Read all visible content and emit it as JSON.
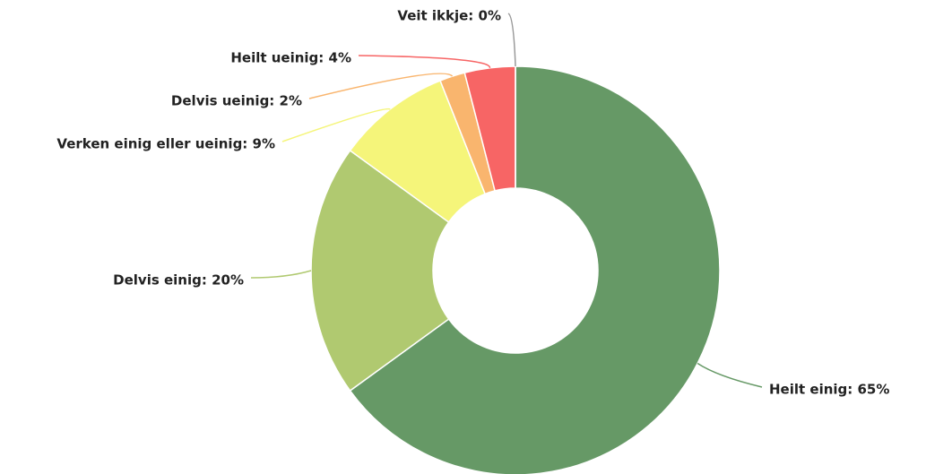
{
  "chart_data": {
    "type": "pie",
    "value_labels": [
      "Heilt einig: 65%",
      "Delvis einig: 20%",
      "Verken einig eller ueinig: 9%",
      "Delvis ueinig: 2%",
      "Heilt ueinig: 4%",
      "Veit ikkje: 0%"
    ],
    "values": [
      65,
      20,
      9,
      2,
      4,
      0
    ],
    "colors": [
      "#669966",
      "#b0c970",
      "#f5f57a",
      "#f9b56e",
      "#f76565",
      "#999999"
    ]
  }
}
